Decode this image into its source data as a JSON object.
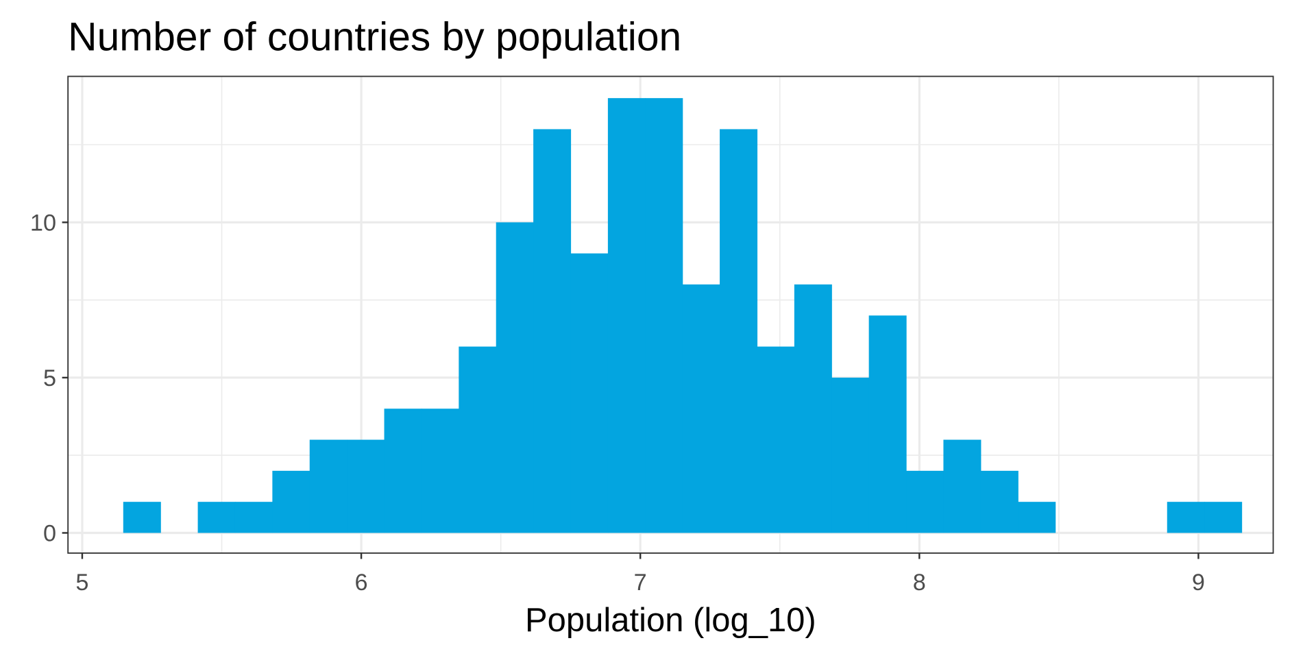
{
  "chart_data": {
    "type": "bar",
    "subtype": "histogram",
    "title": "Number of countries by population",
    "xlabel": "Population (log_10)",
    "ylabel": "",
    "bin_start": 5.147,
    "bin_width": 0.1336,
    "counts": [
      1,
      0,
      1,
      1,
      2,
      3,
      3,
      4,
      4,
      6,
      10,
      13,
      9,
      14,
      14,
      8,
      13,
      6,
      8,
      5,
      7,
      2,
      3,
      2,
      1,
      0,
      0,
      0,
      1,
      1
    ],
    "xlim": [
      4.949,
      9.268
    ],
    "ylim": [
      -0.65,
      14.7
    ],
    "x_ticks": [
      "5",
      "6",
      "7",
      "8",
      "9"
    ],
    "x_tick_values": [
      5,
      6,
      7,
      8,
      9
    ],
    "y_ticks": [
      "0",
      "5",
      "10"
    ],
    "y_tick_values": [
      0,
      5,
      10
    ],
    "grid": true,
    "bar_color": "#03A5E0"
  }
}
